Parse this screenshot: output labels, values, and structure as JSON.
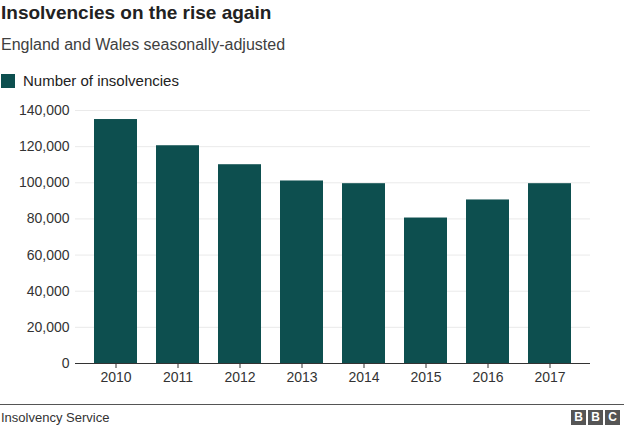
{
  "chart_data": {
    "type": "bar",
    "title": "Insolvencies on the rise again",
    "subtitle": "England and Wales seasonally-adjusted",
    "categories": [
      "2010",
      "2011",
      "2012",
      "2013",
      "2014",
      "2015",
      "2016",
      "2017"
    ],
    "series": [
      {
        "name": "Number of insolvencies",
        "color": "#0d4f4f",
        "values": [
          135000,
          120500,
          110000,
          101000,
          99500,
          80500,
          90500,
          99500
        ]
      }
    ],
    "legend": "top-left",
    "ylim": [
      0,
      140000
    ],
    "yticks": [
      0,
      {
        "value": 20000,
        "label": "20,000"
      },
      {
        "value": 40000,
        "label": "40,000"
      },
      {
        "value": 60000,
        "label": "60,000"
      },
      {
        "value": 80000,
        "label": "80,000"
      },
      {
        "value": 100000,
        "label": "100,000"
      },
      {
        "value": 120000,
        "label": "120,000"
      },
      {
        "value": 140000,
        "label": "140,000"
      }
    ],
    "grid": true,
    "source": "Insolvency Service",
    "credit": "BBC"
  }
}
